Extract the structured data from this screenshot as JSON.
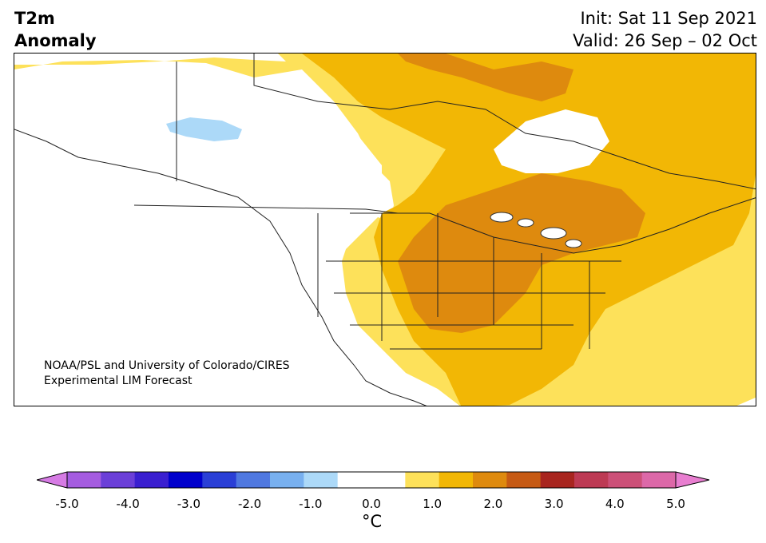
{
  "header": {
    "variable": "T2m",
    "subtitle": "Anomaly",
    "init": "Init: Sat 11 Sep 2021",
    "valid": "Valid: 26 Sep – 02 Oct"
  },
  "map": {
    "region": "North America",
    "credit_line1": "NOAA/PSL and University of Colorado/CIRES",
    "credit_line2": "Experimental LIM Forecast"
  },
  "colorbar": {
    "ticks": [
      "-5.0",
      "-4.0",
      "-3.0",
      "-2.0",
      "-1.0",
      "0.0",
      "1.0",
      "2.0",
      "3.0",
      "4.0",
      "5.0"
    ],
    "unit_label": "°C",
    "colors": [
      "#d67be4",
      "#a55ce0",
      "#6b3fd8",
      "#3a1fd0",
      "#0000cc",
      "#2a3fd6",
      "#4f78e0",
      "#78b0ef",
      "#acd9f8",
      "#ffffff",
      "#ffffff",
      "#fde15a",
      "#f2b705",
      "#de8a0e",
      "#c65a14",
      "#a8251f",
      "#bd3a54",
      "#cc5078",
      "#dc68a8",
      "#e87ed0"
    ]
  }
}
